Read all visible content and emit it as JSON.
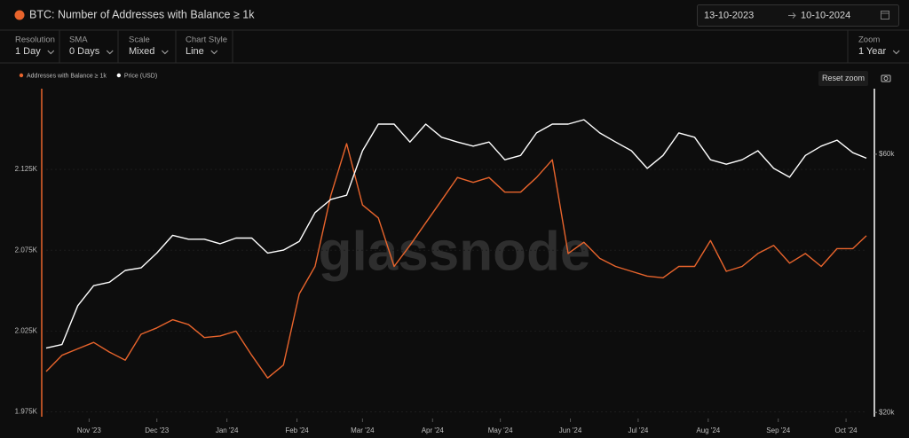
{
  "header": {
    "title": "BTC: Number of Addresses with Balance ≥ 1k",
    "date_from": "13-10-2023",
    "date_to": "10-10-2024"
  },
  "toolbar": {
    "controls": [
      {
        "label": "Resolution",
        "value": "1 Day"
      },
      {
        "label": "SMA",
        "value": "0 Days"
      },
      {
        "label": "Scale",
        "value": "Mixed"
      },
      {
        "label": "Chart Style",
        "value": "Line"
      }
    ],
    "zoom": {
      "label": "Zoom",
      "value": "1 Year"
    }
  },
  "reset_zoom": "Reset zoom",
  "watermark": "glassnode",
  "chart_data": {
    "type": "line",
    "x": [
      "2023-10-13",
      "2023-10-20",
      "2023-10-27",
      "2023-11-03",
      "2023-11-10",
      "2023-11-17",
      "2023-11-24",
      "2023-12-01",
      "2023-12-08",
      "2023-12-15",
      "2023-12-22",
      "2023-12-29",
      "2024-01-05",
      "2024-01-12",
      "2024-01-19",
      "2024-01-26",
      "2024-02-02",
      "2024-02-09",
      "2024-02-16",
      "2024-02-23",
      "2024-03-01",
      "2024-03-08",
      "2024-03-15",
      "2024-03-22",
      "2024-03-29",
      "2024-04-05",
      "2024-04-12",
      "2024-04-19",
      "2024-04-26",
      "2024-05-03",
      "2024-05-10",
      "2024-05-17",
      "2024-05-24",
      "2024-05-31",
      "2024-06-07",
      "2024-06-14",
      "2024-06-21",
      "2024-06-28",
      "2024-07-05",
      "2024-07-12",
      "2024-07-19",
      "2024-07-26",
      "2024-08-02",
      "2024-08-09",
      "2024-08-16",
      "2024-08-23",
      "2024-08-30",
      "2024-09-06",
      "2024-09-13",
      "2024-09-20",
      "2024-09-27",
      "2024-10-04",
      "2024-10-10"
    ],
    "series": [
      {
        "name": "Addresses with Balance ≥ 1k",
        "color": "#e8642c",
        "values": [
          2000,
          2010,
          2014,
          2018,
          2012,
          2007,
          2023,
          2027,
          2032,
          2029,
          2021,
          2022,
          2025,
          2010,
          1996,
          2004,
          2048,
          2065,
          2109,
          2141,
          2103,
          2095,
          2065,
          2078,
          2092,
          2106,
          2120,
          2117,
          2120,
          2111,
          2111,
          2120,
          2131,
          2073,
          2080,
          2070,
          2065,
          2062,
          2059,
          2058,
          2065,
          2065,
          2081,
          2062,
          2065,
          2073,
          2078,
          2067,
          2073,
          2065,
          2076,
          2076,
          2084
        ]
      },
      {
        "name": "Price (USD)",
        "color": "#ffffff",
        "axis": "y2",
        "values": [
          26300,
          26700,
          31500,
          34300,
          34800,
          36600,
          37000,
          39400,
          42500,
          41800,
          41800,
          41000,
          42000,
          42000,
          39400,
          39900,
          41400,
          46800,
          49500,
          50400,
          60900,
          68200,
          68200,
          63200,
          68200,
          64500,
          63200,
          62100,
          63200,
          58600,
          59700,
          65700,
          68200,
          68200,
          69500,
          65700,
          63200,
          60900,
          56500,
          59700,
          65700,
          64500,
          58600,
          57500,
          58600,
          60900,
          56500,
          54400,
          59700,
          62100,
          63700,
          60400,
          59000
        ]
      }
    ],
    "xlim": [
      "2023-10-13",
      "2024-10-10"
    ],
    "xticks": [
      {
        "value": "2023-11-01",
        "label": "Nov '23"
      },
      {
        "value": "2023-12-01",
        "label": "Dec '23"
      },
      {
        "value": "2024-01-01",
        "label": "Jan '24"
      },
      {
        "value": "2024-02-01",
        "label": "Feb '24"
      },
      {
        "value": "2024-03-01",
        "label": "Mar '24"
      },
      {
        "value": "2024-04-01",
        "label": "Apr '24"
      },
      {
        "value": "2024-05-01",
        "label": "May '24"
      },
      {
        "value": "2024-06-01",
        "label": "Jun '24"
      },
      {
        "value": "2024-07-01",
        "label": "Jul '24"
      },
      {
        "value": "2024-08-01",
        "label": "Aug '24"
      },
      {
        "value": "2024-09-01",
        "label": "Sep '24"
      },
      {
        "value": "2024-10-01",
        "label": "Oct '24"
      }
    ],
    "ylim": [
      1972,
      2175
    ],
    "yticks": [
      {
        "value": 1975,
        "label": "1.975K"
      },
      {
        "value": 2025,
        "label": "2.025K"
      },
      {
        "value": 2075,
        "label": "2.075K"
      },
      {
        "value": 2125,
        "label": "2.125K"
      }
    ],
    "y2lim": [
      19640,
      79300
    ],
    "y2ticks": [
      {
        "value": 20000,
        "label": "$20k"
      },
      {
        "value": 60000,
        "label": "$60k"
      }
    ],
    "y2scale": "log",
    "grid": true
  }
}
